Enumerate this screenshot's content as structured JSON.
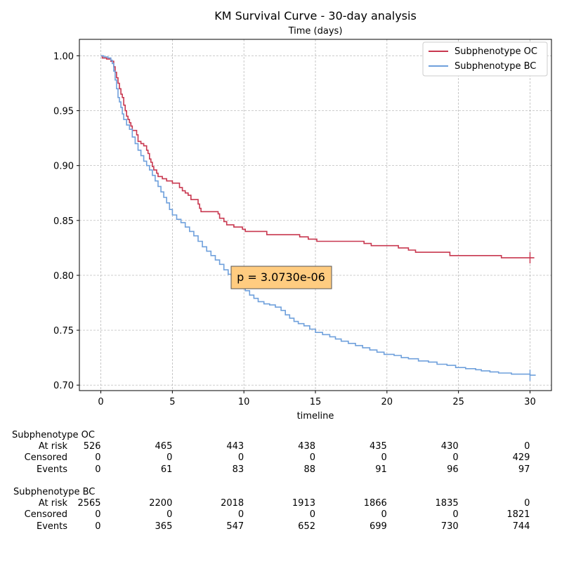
{
  "chart_data": {
    "type": "line",
    "title": "KM Survival Curve - 30-day analysis",
    "subtitle": "Time (days)",
    "xlabel": "timeline",
    "ylabel": "",
    "xlim": [
      -1.5,
      31.5
    ],
    "ylim": [
      0.695,
      1.015
    ],
    "x_ticks": [
      0,
      5,
      10,
      15,
      20,
      25,
      30
    ],
    "y_ticks": [
      0.7,
      0.75,
      0.8,
      0.85,
      0.9,
      0.95,
      1.0
    ],
    "y_tick_labels": [
      "0.70",
      "0.75",
      "0.80",
      "0.85",
      "0.90",
      "0.95",
      "1.00"
    ],
    "grid": true,
    "legend_position": "top-right",
    "annotation": "p = 3.0730e-06",
    "annotation_color": "#ffcc80",
    "series": [
      {
        "name": "Subphenotype OC",
        "color": "#c8374f",
        "censor_at": 30.0,
        "points": [
          [
            0,
            1.0
          ],
          [
            0.1,
            0.998
          ],
          [
            0.4,
            0.997
          ],
          [
            0.7,
            0.995
          ],
          [
            0.9,
            0.99
          ],
          [
            1.0,
            0.985
          ],
          [
            1.1,
            0.98
          ],
          [
            1.2,
            0.975
          ],
          [
            1.3,
            0.97
          ],
          [
            1.4,
            0.965
          ],
          [
            1.5,
            0.962
          ],
          [
            1.6,
            0.955
          ],
          [
            1.7,
            0.95
          ],
          [
            1.8,
            0.945
          ],
          [
            1.9,
            0.942
          ],
          [
            2.0,
            0.939
          ],
          [
            2.1,
            0.936
          ],
          [
            2.2,
            0.932
          ],
          [
            2.5,
            0.928
          ],
          [
            2.6,
            0.922
          ],
          [
            2.8,
            0.92
          ],
          [
            3.0,
            0.918
          ],
          [
            3.2,
            0.914
          ],
          [
            3.3,
            0.911
          ],
          [
            3.4,
            0.906
          ],
          [
            3.5,
            0.903
          ],
          [
            3.6,
            0.899
          ],
          [
            3.7,
            0.896
          ],
          [
            3.9,
            0.893
          ],
          [
            4.0,
            0.89
          ],
          [
            4.3,
            0.888
          ],
          [
            4.6,
            0.886
          ],
          [
            5.0,
            0.884
          ],
          [
            5.5,
            0.88
          ],
          [
            5.7,
            0.877
          ],
          [
            5.9,
            0.875
          ],
          [
            6.1,
            0.873
          ],
          [
            6.3,
            0.869
          ],
          [
            6.8,
            0.865
          ],
          [
            6.9,
            0.861
          ],
          [
            7.0,
            0.858
          ],
          [
            8.2,
            0.856
          ],
          [
            8.3,
            0.852
          ],
          [
            8.6,
            0.849
          ],
          [
            8.8,
            0.846
          ],
          [
            9.3,
            0.844
          ],
          [
            9.9,
            0.842
          ],
          [
            10.1,
            0.84
          ],
          [
            11.6,
            0.837
          ],
          [
            13.9,
            0.835
          ],
          [
            14.5,
            0.833
          ],
          [
            15.1,
            0.831
          ],
          [
            18.4,
            0.829
          ],
          [
            18.9,
            0.827
          ],
          [
            20.8,
            0.825
          ],
          [
            21.5,
            0.823
          ],
          [
            22.0,
            0.821
          ],
          [
            24.4,
            0.818
          ],
          [
            28.0,
            0.816
          ],
          [
            30.3,
            0.816
          ]
        ]
      },
      {
        "name": "Subphenotype BC",
        "color": "#6fa0dc",
        "censor_at": 30.0,
        "points": [
          [
            0,
            1.0
          ],
          [
            0.2,
            0.999
          ],
          [
            0.5,
            0.998
          ],
          [
            0.7,
            0.996
          ],
          [
            0.8,
            0.993
          ],
          [
            0.9,
            0.986
          ],
          [
            1.0,
            0.978
          ],
          [
            1.1,
            0.97
          ],
          [
            1.2,
            0.962
          ],
          [
            1.3,
            0.958
          ],
          [
            1.4,
            0.953
          ],
          [
            1.5,
            0.947
          ],
          [
            1.6,
            0.942
          ],
          [
            1.8,
            0.937
          ],
          [
            2.0,
            0.933
          ],
          [
            2.2,
            0.926
          ],
          [
            2.4,
            0.92
          ],
          [
            2.6,
            0.914
          ],
          [
            2.8,
            0.909
          ],
          [
            3.0,
            0.904
          ],
          [
            3.2,
            0.9
          ],
          [
            3.4,
            0.896
          ],
          [
            3.6,
            0.891
          ],
          [
            3.8,
            0.886
          ],
          [
            4.0,
            0.881
          ],
          [
            4.2,
            0.876
          ],
          [
            4.4,
            0.871
          ],
          [
            4.6,
            0.866
          ],
          [
            4.8,
            0.86
          ],
          [
            5.0,
            0.855
          ],
          [
            5.3,
            0.851
          ],
          [
            5.6,
            0.848
          ],
          [
            5.9,
            0.844
          ],
          [
            6.2,
            0.84
          ],
          [
            6.5,
            0.836
          ],
          [
            6.8,
            0.831
          ],
          [
            7.1,
            0.826
          ],
          [
            7.4,
            0.822
          ],
          [
            7.7,
            0.818
          ],
          [
            8.0,
            0.814
          ],
          [
            8.3,
            0.81
          ],
          [
            8.6,
            0.805
          ],
          [
            8.9,
            0.801
          ],
          [
            9.2,
            0.797
          ],
          [
            9.5,
            0.793
          ],
          [
            9.8,
            0.789
          ],
          [
            10.1,
            0.786
          ],
          [
            10.4,
            0.782
          ],
          [
            10.7,
            0.779
          ],
          [
            11.0,
            0.776
          ],
          [
            11.4,
            0.774
          ],
          [
            11.8,
            0.773
          ],
          [
            12.2,
            0.771
          ],
          [
            12.6,
            0.768
          ],
          [
            12.9,
            0.764
          ],
          [
            13.2,
            0.761
          ],
          [
            13.5,
            0.758
          ],
          [
            13.8,
            0.756
          ],
          [
            14.2,
            0.754
          ],
          [
            14.6,
            0.751
          ],
          [
            15.0,
            0.748
          ],
          [
            15.5,
            0.746
          ],
          [
            16.0,
            0.744
          ],
          [
            16.4,
            0.742
          ],
          [
            16.8,
            0.74
          ],
          [
            17.3,
            0.738
          ],
          [
            17.8,
            0.736
          ],
          [
            18.3,
            0.734
          ],
          [
            18.8,
            0.732
          ],
          [
            19.3,
            0.73
          ],
          [
            19.8,
            0.728
          ],
          [
            20.5,
            0.727
          ],
          [
            21.0,
            0.725
          ],
          [
            21.5,
            0.724
          ],
          [
            22.2,
            0.722
          ],
          [
            22.9,
            0.721
          ],
          [
            23.5,
            0.719
          ],
          [
            24.2,
            0.718
          ],
          [
            24.8,
            0.716
          ],
          [
            25.5,
            0.715
          ],
          [
            26.2,
            0.714
          ],
          [
            26.6,
            0.713
          ],
          [
            27.2,
            0.712
          ],
          [
            27.8,
            0.711
          ],
          [
            28.7,
            0.71
          ],
          [
            29.4,
            0.71
          ],
          [
            30.0,
            0.709
          ],
          [
            30.4,
            0.709
          ]
        ]
      }
    ]
  },
  "risk_table": {
    "columns": [
      "0",
      "5",
      "10",
      "15",
      "20",
      "25",
      "30"
    ],
    "groups": [
      {
        "name": "Subphenotype OC",
        "rows": [
          {
            "label": "At risk",
            "values": [
              "526",
              "465",
              "443",
              "438",
              "435",
              "430",
              "0"
            ]
          },
          {
            "label": "Censored",
            "values": [
              "0",
              "0",
              "0",
              "0",
              "0",
              "0",
              "429"
            ]
          },
          {
            "label": "Events",
            "values": [
              "0",
              "61",
              "83",
              "88",
              "91",
              "96",
              "97"
            ]
          }
        ]
      },
      {
        "name": "Subphenotype BC",
        "rows": [
          {
            "label": "At risk",
            "values": [
              "2565",
              "2200",
              "2018",
              "1913",
              "1866",
              "1835",
              "0"
            ]
          },
          {
            "label": "Censored",
            "values": [
              "0",
              "0",
              "0",
              "0",
              "0",
              "0",
              "1821"
            ]
          },
          {
            "label": "Events",
            "values": [
              "0",
              "365",
              "547",
              "652",
              "699",
              "730",
              "744"
            ]
          }
        ]
      }
    ]
  }
}
